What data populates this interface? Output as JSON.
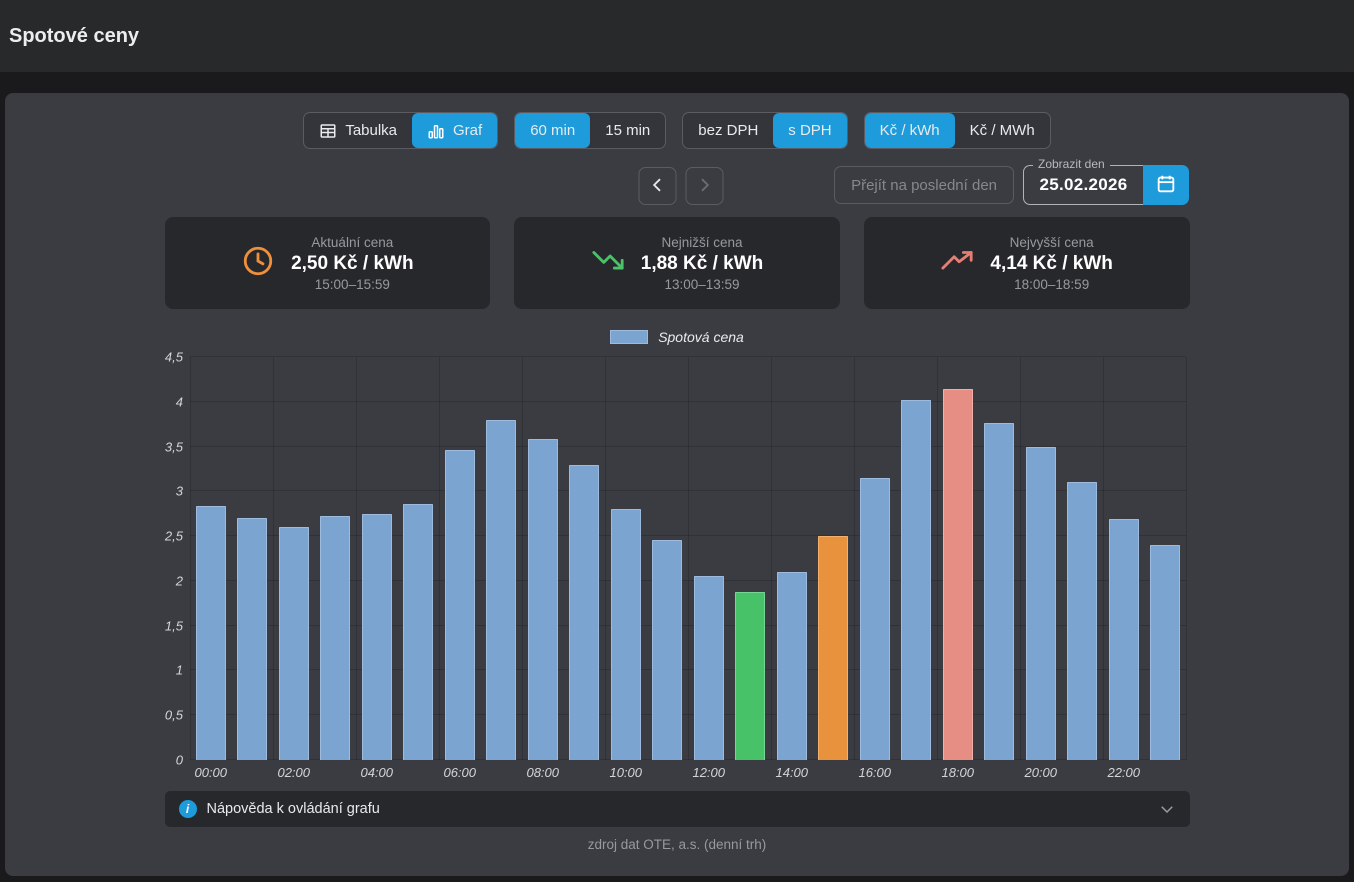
{
  "header": {
    "title": "Spotové ceny"
  },
  "toolbar": {
    "view": {
      "options": [
        "Tabulka",
        "Graf"
      ],
      "active": "Graf"
    },
    "interval": {
      "options": [
        "60 min",
        "15 min"
      ],
      "active": "60 min"
    },
    "vat": {
      "options": [
        "bez DPH",
        "s DPH"
      ],
      "active": "s DPH"
    },
    "unit": {
      "options": [
        "Kč / kWh",
        "Kč / MWh"
      ],
      "active": "Kč / kWh"
    }
  },
  "nav": {
    "go_last_day_label": "Přejít na poslední den",
    "date_label": "Zobrazit den",
    "date_value": "25.02.2026"
  },
  "cards": {
    "current": {
      "label": "Aktuální cena",
      "value": "2,50 Kč / kWh",
      "time": "15:00–15:59",
      "accent": "#ee8f3c"
    },
    "lowest": {
      "label": "Nejnižší cena",
      "value": "1,88 Kč / kWh",
      "time": "13:00–13:59",
      "accent": "#4cc268"
    },
    "highest": {
      "label": "Nejvyšší cena",
      "value": "4,14 Kč / kWh",
      "time": "18:00–18:59",
      "accent": "#e77d73"
    }
  },
  "chart_data": {
    "type": "bar",
    "title": "",
    "legend": "Spotová cena",
    "legend_position": "top",
    "grid": true,
    "categories": [
      "00:00",
      "01:00",
      "02:00",
      "03:00",
      "04:00",
      "05:00",
      "06:00",
      "07:00",
      "08:00",
      "09:00",
      "10:00",
      "11:00",
      "12:00",
      "13:00",
      "14:00",
      "15:00",
      "16:00",
      "17:00",
      "18:00",
      "19:00",
      "20:00",
      "21:00",
      "22:00",
      "23:00"
    ],
    "values": [
      2.84,
      2.7,
      2.6,
      2.72,
      2.75,
      2.86,
      3.46,
      3.8,
      3.59,
      3.29,
      2.8,
      2.46,
      2.05,
      1.88,
      2.1,
      2.5,
      3.15,
      4.02,
      4.14,
      3.76,
      3.5,
      3.1,
      2.69,
      2.4
    ],
    "xlabel": "",
    "ylabel": "",
    "ylim": [
      0,
      4.5
    ],
    "y_ticks": [
      "0",
      "0,5",
      "1",
      "1,5",
      "2",
      "2,5",
      "3",
      "3,5",
      "4",
      "4,5"
    ],
    "x_tick_every": 2,
    "highlights": {
      "lowest_index": 13,
      "current_index": 15,
      "highest_index": 18
    },
    "colors": {
      "default": "#7ba4d0",
      "lowest": "#47c268",
      "current": "#e8923e",
      "highest": "#e68d84"
    },
    "border_colors": {
      "default": "#9dbbde",
      "lowest": "#76d693",
      "current": "#f2b06c",
      "highest": "#f3aea6"
    }
  },
  "help": {
    "label": "Nápověda k ovládání grafu"
  },
  "footer": {
    "source": "zdroj dat OTE, a.s. (denní trh)"
  },
  "accent_color": "#1e9bdb"
}
